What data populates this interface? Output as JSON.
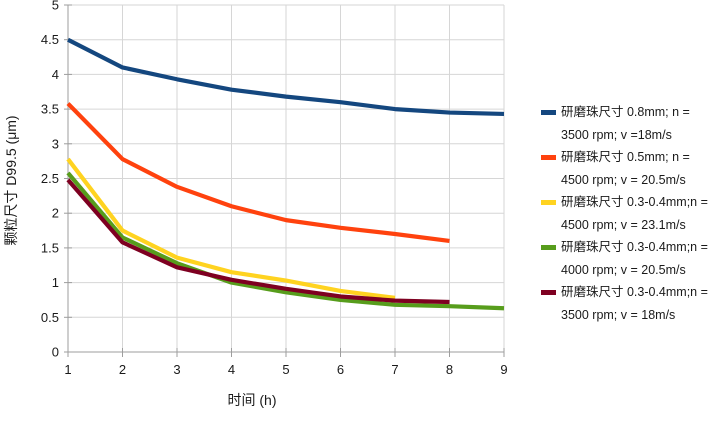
{
  "chart_data": {
    "type": "line",
    "title": "",
    "xlabel": "时间 (h)",
    "ylabel": "颗粒尺寸 D99.5 (μm)",
    "xlim": [
      1,
      9
    ],
    "ylim": [
      0,
      5
    ],
    "x_ticks": [
      1,
      2,
      3,
      4,
      5,
      6,
      7,
      8,
      9
    ],
    "x_tick_labels": [
      "1",
      "2",
      "3",
      "4",
      "5",
      "6",
      "7",
      "8",
      "9"
    ],
    "y_ticks": [
      0,
      0.5,
      1,
      1.5,
      2,
      2.5,
      3,
      3.5,
      4,
      4.5,
      5
    ],
    "y_tick_labels": [
      "0",
      "0.5",
      "1",
      "1.5",
      "2",
      "2.5",
      "3",
      "3.5",
      "4",
      "4.5",
      "5"
    ],
    "grid": true,
    "legend_position": "right",
    "series": [
      {
        "name": "研磨珠尺寸 0.8mm; n = 3500 rpm; v =18m/s",
        "label_line1": "研磨珠尺寸 0.8mm; n =",
        "label_line2": "3500 rpm; v =18m/s",
        "color": "#14477F",
        "x": [
          1,
          2,
          3,
          4,
          5,
          6,
          7,
          8,
          9
        ],
        "values": [
          4.5,
          4.1,
          3.93,
          3.78,
          3.68,
          3.6,
          3.5,
          3.45,
          3.43
        ]
      },
      {
        "name": "研磨珠尺寸 0.5mm; n = 4500 rpm; v = 20.5m/s",
        "label_line1": "研磨珠尺寸 0.5mm; n =",
        "label_line2": "4500 rpm; v = 20.5m/s",
        "color": "#FF420E",
        "x": [
          1,
          2,
          3,
          4,
          5,
          6,
          7,
          8
        ],
        "values": [
          3.58,
          2.78,
          2.38,
          2.1,
          1.9,
          1.79,
          1.7,
          1.6
        ]
      },
      {
        "name": "研磨珠尺寸 0.3-0.4mm;n = 4500 rpm; v = 23.1m/s",
        "label_line1": "研磨珠尺寸 0.3-0.4mm;n =",
        "label_line2": "4500 rpm; v = 23.1m/s",
        "color": "#FFD320",
        "x": [
          1,
          2,
          3,
          4,
          5,
          6,
          7
        ],
        "values": [
          2.78,
          1.75,
          1.36,
          1.15,
          1.03,
          0.88,
          0.78
        ]
      },
      {
        "name": "研磨珠尺寸 0.3-0.4mm;n = 4000 rpm; v = 20.5m/s",
        "label_line1": "研磨珠尺寸 0.3-0.4mm;n =",
        "label_line2": "4000 rpm; v = 20.5m/s",
        "color": "#579D1C",
        "x": [
          1,
          2,
          3,
          4,
          5,
          6,
          7,
          8,
          9
        ],
        "values": [
          2.58,
          1.65,
          1.28,
          1.0,
          0.86,
          0.75,
          0.68,
          0.66,
          0.63
        ]
      },
      {
        "name": "研磨珠尺寸 0.3-0.4mm;n = 3500 rpm; v = 18m/s",
        "label_line1": "研磨珠尺寸 0.3-0.4mm;n =",
        "label_line2": "3500 rpm; v = 18m/s",
        "color": "#7E0021",
        "x": [
          1,
          2,
          3,
          4,
          5,
          6,
          7,
          8
        ],
        "values": [
          2.48,
          1.58,
          1.22,
          1.04,
          0.91,
          0.8,
          0.74,
          0.72
        ]
      }
    ]
  },
  "style": {
    "grid_color": "#d6d6d6",
    "axis_color": "#9d9d9d",
    "text_color": "#1a1a1a",
    "background": "#ffffff",
    "line_width": 4.2
  }
}
